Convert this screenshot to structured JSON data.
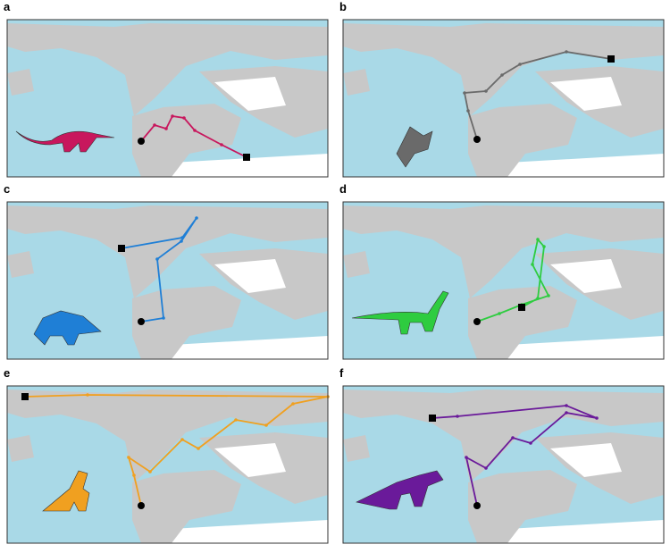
{
  "panels": [
    {
      "label": "a",
      "color": "#c8175d"
    },
    {
      "label": "b",
      "color": "#6a6a6a"
    },
    {
      "label": "c",
      "color": "#1f7fd6"
    },
    {
      "label": "d",
      "color": "#2ecc40"
    },
    {
      "label": "e",
      "color": "#f0a020"
    },
    {
      "label": "f",
      "color": "#6a1a9a"
    }
  ]
}
